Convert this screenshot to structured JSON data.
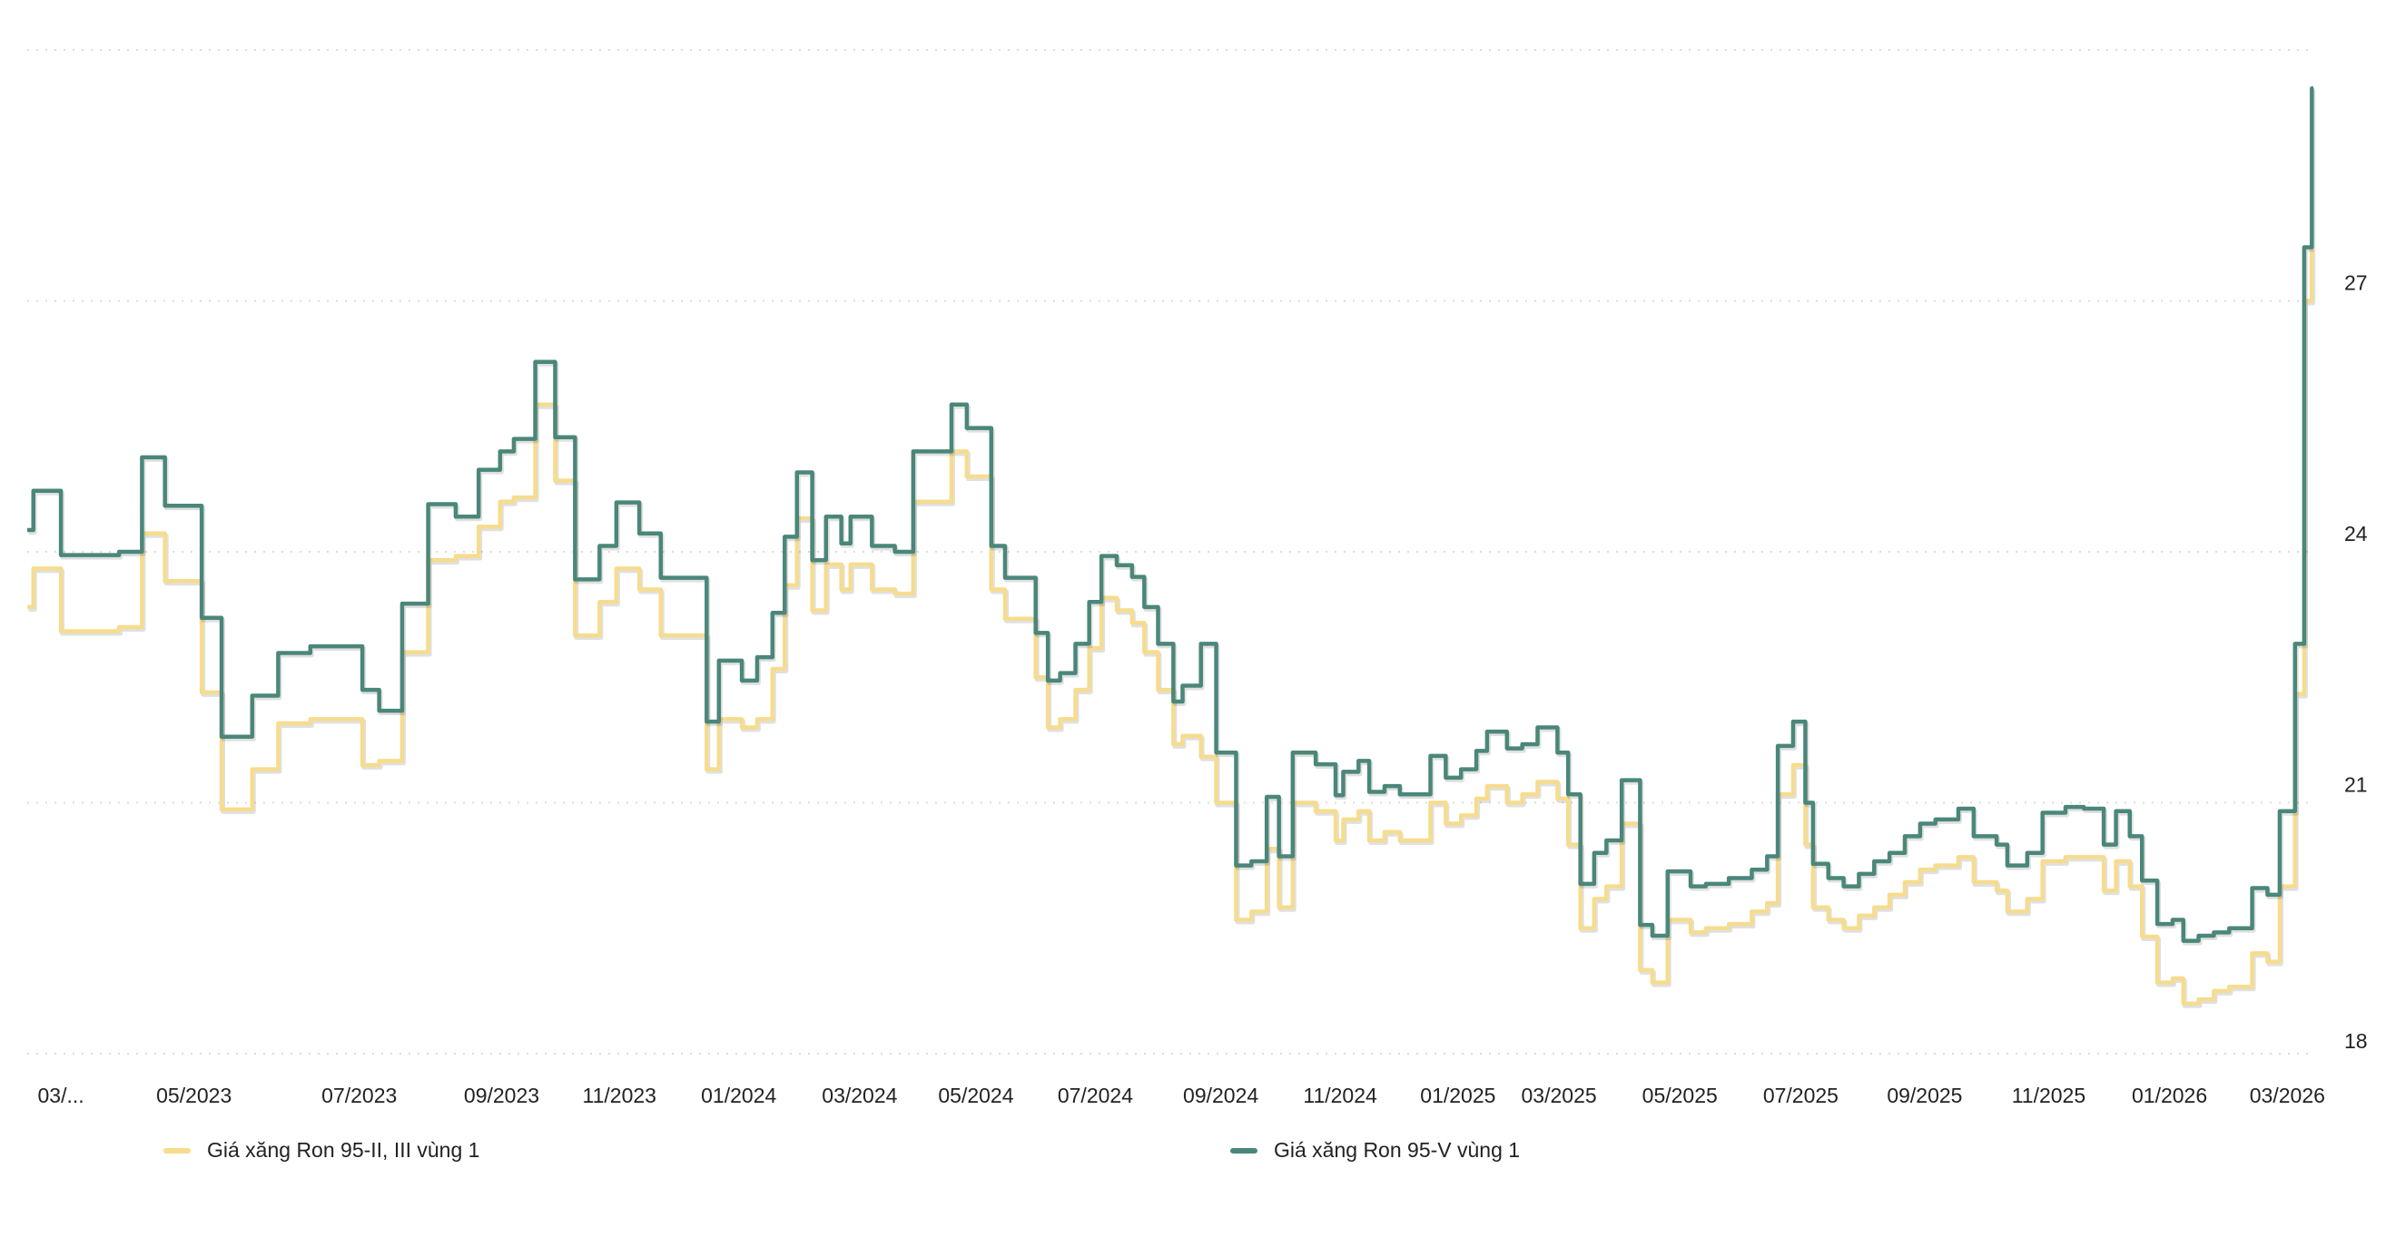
{
  "chart_data": {
    "type": "line",
    "step": true,
    "title": "",
    "xlabel": "",
    "ylabel": "",
    "ylim": [
      18,
      30
    ],
    "y_ticks": [
      18,
      21,
      24,
      27
    ],
    "y_gridlines": [
      18,
      21,
      24,
      27,
      30
    ],
    "grid": true,
    "x_unit": "week index",
    "xlim": [
      0,
      149.4
    ],
    "x_ticks": [
      {
        "label": "03/...",
        "x": 2.2
      },
      {
        "label": "05/2023",
        "x": 10.9
      },
      {
        "label": "07/2023",
        "x": 21.7
      },
      {
        "label": "09/2023",
        "x": 31
      },
      {
        "label": "11/2023",
        "x": 38.7
      },
      {
        "label": "01/2024",
        "x": 46.5
      },
      {
        "label": "03/2024",
        "x": 54.4
      },
      {
        "label": "05/2024",
        "x": 62
      },
      {
        "label": "07/2024",
        "x": 69.8
      },
      {
        "label": "09/2024",
        "x": 78
      },
      {
        "label": "11/2024",
        "x": 85.8
      },
      {
        "label": "01/2025",
        "x": 93.5
      },
      {
        "label": "03/2025",
        "x": 100.1
      },
      {
        "label": "05/2025",
        "x": 108
      },
      {
        "label": "07/2025",
        "x": 115.9
      },
      {
        "label": "09/2025",
        "x": 124
      },
      {
        "label": "11/2025",
        "x": 132.1
      },
      {
        "label": "01/2026",
        "x": 140
      },
      {
        "label": "03/2026",
        "x": 147.7
      }
    ],
    "legend_position": "bottom",
    "x": [
      0,
      0.4,
      2.2,
      6,
      7.5,
      9,
      11.4,
      12.7,
      14.7,
      16.4,
      18.5,
      21.9,
      23,
      24.5,
      26.2,
      28,
      29.5,
      30.9,
      31.8,
      33.2,
      34.5,
      35.8,
      37.4,
      38.5,
      40,
      41.4,
      44.4,
      45.2,
      46.7,
      47.7,
      48.7,
      49.5,
      50.3,
      51.3,
      52.2,
      53.2,
      53.8,
      55.2,
      56.7,
      57.9,
      60.4,
      61.4,
      63,
      63.9,
      65.9,
      66.7,
      67.5,
      68.5,
      69.4,
      70.2,
      71.2,
      72.2,
      73,
      73.9,
      74.9,
      75.5,
      76.7,
      77.7,
      79,
      80,
      81,
      81.8,
      82.7,
      84.2,
      85.5,
      86,
      87,
      87.7,
      88.7,
      89.7,
      91.7,
      92.7,
      93.7,
      94.7,
      95.4,
      96.7,
      97.7,
      98.7,
      100,
      100.7,
      101.5,
      102.4,
      103.2,
      104.2,
      105.4,
      106.2,
      107.2,
      108.7,
      109.7,
      111.2,
      112.7,
      113.7,
      114.4,
      115.4,
      116.2,
      116.7,
      117.7,
      118.7,
      119.7,
      120.7,
      121.7,
      122.7,
      123.7,
      124.7,
      126.2,
      127.2,
      128.7,
      129.4,
      130.7,
      131.7,
      133.2,
      134.4,
      135.7,
      136.5,
      137.4,
      138.2,
      139.2,
      140.2,
      140.9,
      141.9,
      142.9,
      143.9,
      145.4,
      146.4,
      147.2,
      148.2,
      148.8,
      149.3
    ],
    "series": [
      {
        "name": "Giá xăng Ron 95-II, III vùng 1",
        "color": "#f6dc8e",
        "values": [
          23.34,
          23.8,
          23.05,
          23.1,
          24.22,
          23.65,
          22.32,
          20.92,
          21.4,
          21.95,
          22.0,
          21.45,
          21.5,
          22.8,
          23.9,
          23.95,
          24.3,
          24.6,
          24.65,
          25.76,
          24.85,
          23.0,
          23.4,
          23.8,
          23.55,
          23.0,
          21.4,
          22.0,
          21.9,
          22.0,
          22.6,
          23.6,
          24.4,
          23.3,
          23.85,
          23.55,
          23.85,
          23.55,
          23.5,
          24.6,
          25.2,
          24.9,
          23.55,
          23.2,
          22.5,
          21.9,
          22.0,
          22.35,
          22.85,
          23.45,
          23.3,
          23.15,
          22.8,
          22.35,
          21.7,
          21.8,
          21.55,
          21.0,
          19.6,
          19.7,
          20.45,
          19.75,
          21.0,
          20.9,
          20.55,
          20.8,
          20.9,
          20.55,
          20.65,
          20.55,
          21.0,
          20.75,
          20.85,
          21.05,
          21.2,
          21.0,
          21.1,
          21.25,
          21.05,
          20.5,
          19.5,
          19.85,
          20.0,
          20.75,
          19.0,
          18.85,
          19.6,
          19.45,
          19.5,
          19.55,
          19.7,
          19.8,
          21.1,
          21.45,
          20.5,
          19.75,
          19.6,
          19.5,
          19.65,
          19.75,
          19.9,
          20.05,
          20.2,
          20.25,
          20.35,
          20.05,
          19.95,
          19.7,
          19.85,
          20.3,
          20.35,
          20.35,
          19.95,
          20.3,
          20.0,
          19.4,
          18.85,
          18.9,
          18.6,
          18.65,
          18.75,
          18.8,
          19.2,
          19.1,
          20.0,
          22.3,
          27.0,
          27.6
        ]
      },
      {
        "name": "Giá xăng Ron 95-V vùng 1",
        "color": "#4a877a",
        "values": [
          24.26,
          24.73,
          23.96,
          24.0,
          25.13,
          24.55,
          23.21,
          21.79,
          22.28,
          22.79,
          22.87,
          22.35,
          22.1,
          23.38,
          24.57,
          24.42,
          24.98,
          25.2,
          25.35,
          26.27,
          25.37,
          23.67,
          24.07,
          24.59,
          24.22,
          23.69,
          21.97,
          22.7,
          22.46,
          22.74,
          23.27,
          24.18,
          24.95,
          23.9,
          24.42,
          24.1,
          24.42,
          24.07,
          24.0,
          25.2,
          25.76,
          25.48,
          24.07,
          23.69,
          23.03,
          22.46,
          22.55,
          22.9,
          23.4,
          23.95,
          23.84,
          23.7,
          23.34,
          22.9,
          22.21,
          22.4,
          22.9,
          21.6,
          20.25,
          20.3,
          21.07,
          20.36,
          21.6,
          21.46,
          21.09,
          21.37,
          21.5,
          21.13,
          21.2,
          21.1,
          21.56,
          21.3,
          21.4,
          21.62,
          21.85,
          21.65,
          21.7,
          21.9,
          21.6,
          21.1,
          20.03,
          20.4,
          20.55,
          21.27,
          19.54,
          19.41,
          20.18,
          20.0,
          20.03,
          20.1,
          20.2,
          20.36,
          21.68,
          21.97,
          21.0,
          20.27,
          20.1,
          20.0,
          20.15,
          20.3,
          20.4,
          20.6,
          20.75,
          20.8,
          20.93,
          20.6,
          20.5,
          20.25,
          20.4,
          20.88,
          20.95,
          20.93,
          20.5,
          20.9,
          20.6,
          20.07,
          19.55,
          19.6,
          19.35,
          19.41,
          19.45,
          19.5,
          19.98,
          19.9,
          20.9,
          22.9,
          27.64,
          29.54
        ]
      }
    ]
  },
  "legend": {
    "items": [
      {
        "label": "Giá xăng Ron 95-II, III vùng 1",
        "color": "#f6dc8e"
      },
      {
        "label": "Giá xăng Ron 95-V vùng 1",
        "color": "#4a877a"
      }
    ]
  }
}
